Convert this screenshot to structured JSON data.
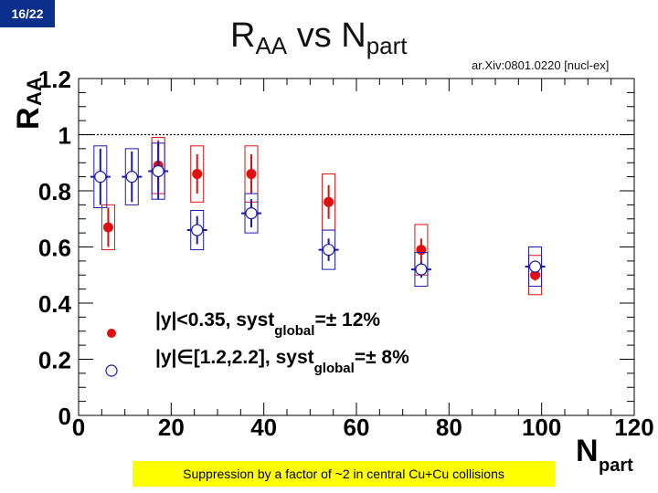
{
  "slide": {
    "number": "16/22"
  },
  "header": {
    "title_main": "R",
    "title_sub_aa": "AA",
    "title_vs": " vs N",
    "title_sub_part": "part",
    "reference": "ar.Xiv:0801.0220 [nucl-ex]"
  },
  "footer": {
    "caption": "Suppression by a factor of ~2 in central Cu+Cu collisions"
  },
  "chart_data": {
    "type": "scatter",
    "title": "RAA vs Npart",
    "xlabel": "N",
    "xlabel_sub": "part",
    "ylabel": "R",
    "ylabel_sub": "AA",
    "xlim": [
      0,
      120
    ],
    "ylim": [
      0,
      1.2
    ],
    "xticks": [
      0,
      20,
      40,
      60,
      80,
      100,
      120
    ],
    "yticks": [
      0,
      0.2,
      0.4,
      0.6,
      0.8,
      1,
      1.2
    ],
    "ytick_labels": [
      "0",
      "0.2",
      "0.4",
      "0.6",
      "0.8",
      "1",
      "1.2"
    ],
    "reference_line": 1,
    "colors": {
      "forward": "#1a1ab0",
      "central": "#e01010",
      "grid": "#000000"
    },
    "series": [
      {
        "name": "central",
        "marker": "filled-circle",
        "points": [
          {
            "x": 6.4,
            "y": 0.67,
            "stat": 0.07,
            "syst": 0.08
          },
          {
            "x": 17.2,
            "y": 0.89,
            "stat": 0.09,
            "syst": 0.1
          },
          {
            "x": 25.6,
            "y": 0.86,
            "stat": 0.07,
            "syst": 0.1
          },
          {
            "x": 37.3,
            "y": 0.86,
            "stat": 0.07,
            "syst": 0.1
          },
          {
            "x": 54.0,
            "y": 0.76,
            "stat": 0.06,
            "syst": 0.1
          },
          {
            "x": 74.0,
            "y": 0.59,
            "stat": 0.04,
            "syst": 0.09
          },
          {
            "x": 98.6,
            "y": 0.5,
            "stat": 0.02,
            "syst": 0.07
          }
        ]
      },
      {
        "name": "forward",
        "marker": "open-circle",
        "points": [
          {
            "x": 4.7,
            "y": 0.85,
            "stat": 0.1,
            "syst": 0.11
          },
          {
            "x": 11.5,
            "y": 0.85,
            "stat": 0.09,
            "syst": 0.1
          },
          {
            "x": 17.2,
            "y": 0.87,
            "stat": 0.1,
            "syst": 0.1
          },
          {
            "x": 25.6,
            "y": 0.66,
            "stat": 0.05,
            "syst": 0.07
          },
          {
            "x": 37.3,
            "y": 0.72,
            "stat": 0.05,
            "syst": 0.07
          },
          {
            "x": 54.0,
            "y": 0.59,
            "stat": 0.04,
            "syst": 0.07
          },
          {
            "x": 74.0,
            "y": 0.52,
            "stat": 0.03,
            "syst": 0.06
          },
          {
            "x": 98.6,
            "y": 0.53,
            "stat": 0.02,
            "syst": 0.07
          }
        ]
      }
    ],
    "legend": [
      {
        "series": "central",
        "pre": "|y|<0.35, syst",
        "sub": "global",
        "post": "=± 12%"
      },
      {
        "series": "forward",
        "pre": "|y|∈[1.2,2.2], syst",
        "sub": "global",
        "post": "=± 8%"
      }
    ]
  }
}
